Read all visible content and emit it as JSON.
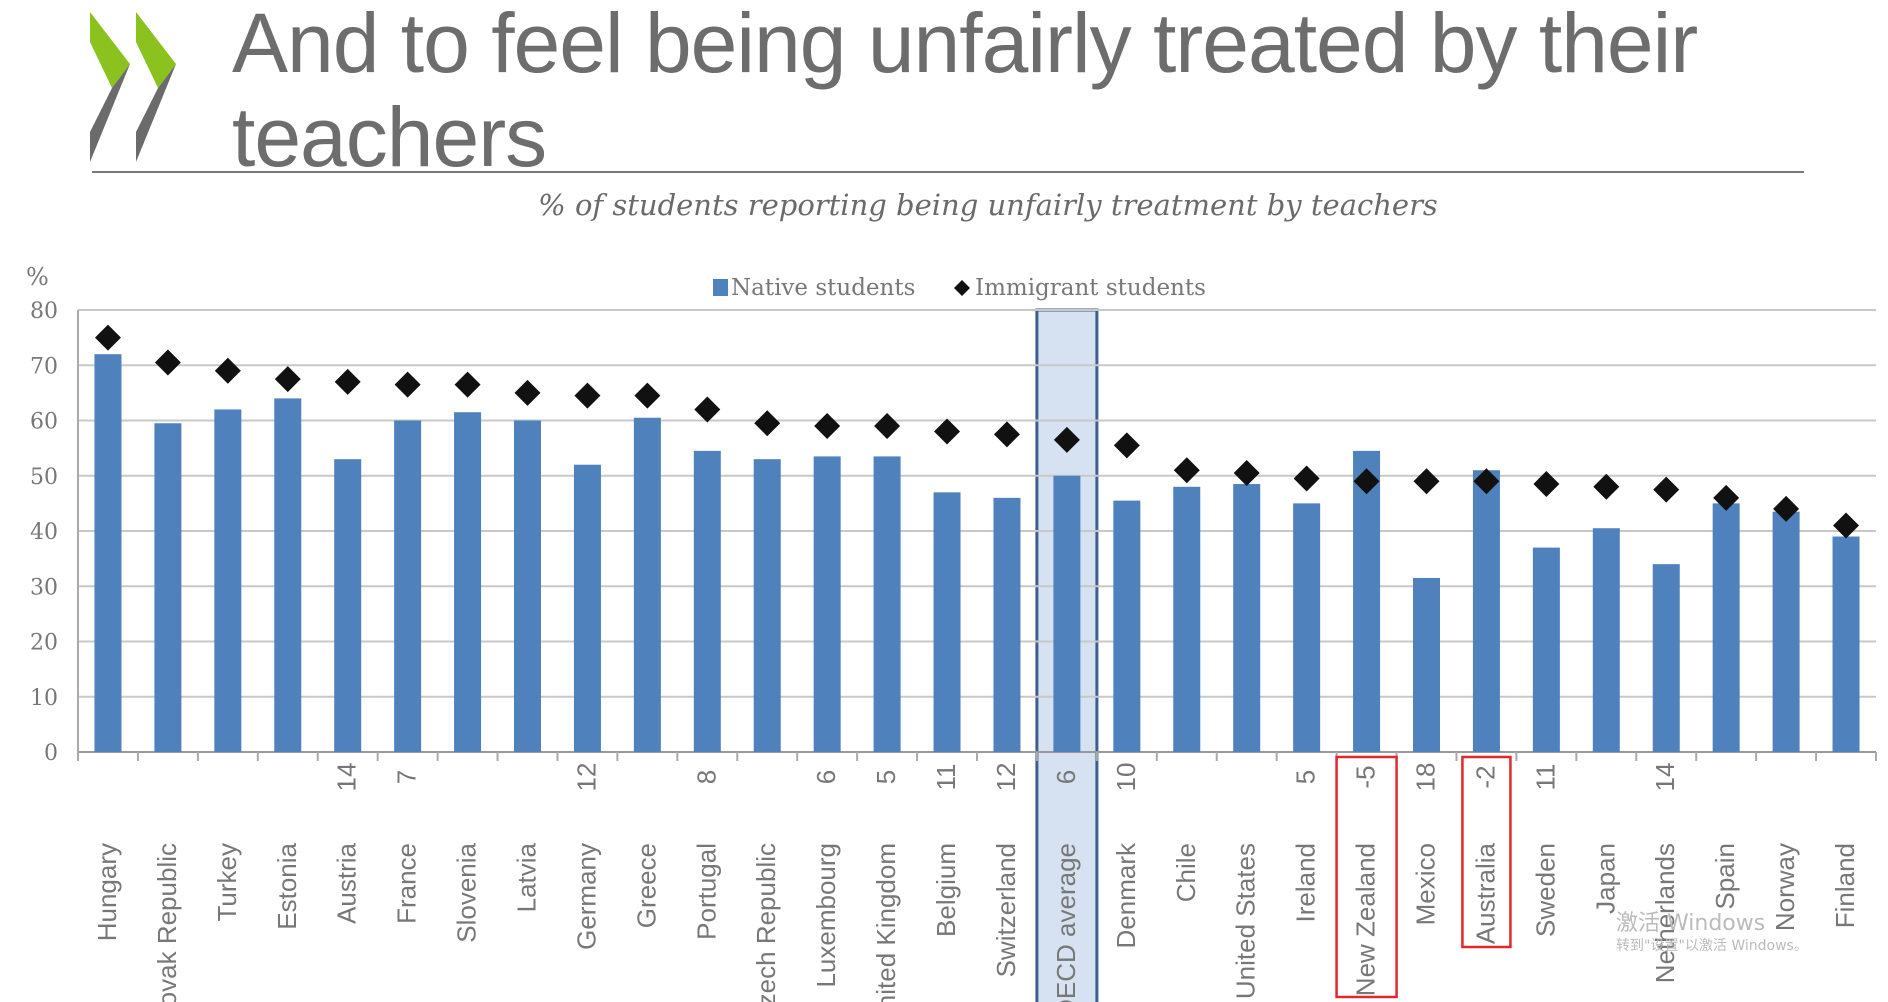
{
  "slide": {
    "title": "And to feel being unfairly treated by their teachers",
    "logo_colors": {
      "green": "#8cc21e",
      "gray": "#6b6b6b"
    }
  },
  "watermark": {
    "line1": "激活 Windows",
    "line2": "转到\"设置\"以激活 Windows。"
  },
  "chart_data": {
    "type": "bar",
    "title": "% of students reporting being unfairly treatment by teachers",
    "ylabel": "%",
    "ylim": [
      0,
      80
    ],
    "yticks": [
      0,
      10,
      20,
      30,
      40,
      50,
      60,
      70,
      80
    ],
    "grid": true,
    "legend_placement": "top-center",
    "colors": {
      "bar": "#4f81bd",
      "marker": "#111111",
      "highlight_fill": "#d6e2f1",
      "highlight_border": "#3d5f8f",
      "annotation_box": "#e0282e"
    },
    "categories": [
      "Hungary",
      "Slovak Republic",
      "Turkey",
      "Estonia",
      "Austria",
      "France",
      "Slovenia",
      "Latvia",
      "Germany",
      "Greece",
      "Portugal",
      "Czech Republic",
      "Luxembourg",
      "United Kingdom",
      "Belgium",
      "Switzerland",
      "OECD average",
      "Denmark",
      "Chile",
      "United States",
      "Ireland",
      "New Zealand",
      "Mexico",
      "Australia",
      "Sweden",
      "Japan",
      "Netherlands",
      "Spain",
      "Norway",
      "Finland"
    ],
    "category_difference_labels": [
      "",
      "",
      "",
      "",
      "14",
      "7",
      "",
      "",
      "12",
      "",
      "8",
      "",
      "6",
      "5",
      "11",
      "12",
      "6",
      "10",
      "",
      "",
      "5",
      "-5",
      "18",
      "-2",
      "11",
      "",
      "14",
      "",
      "",
      ""
    ],
    "series": [
      {
        "name": "Native students",
        "kind": "bar",
        "values": [
          72,
          59.5,
          62,
          64,
          53,
          60,
          61.5,
          60,
          52,
          60.5,
          54.5,
          53,
          53.5,
          53.5,
          47,
          46,
          50,
          45.5,
          48,
          48.5,
          45,
          54.5,
          31.5,
          51,
          37,
          40.5,
          34,
          45,
          43.5,
          39
        ]
      },
      {
        "name": "Immigrant students",
        "kind": "diamond-marker",
        "values": [
          75,
          70.5,
          69,
          67.5,
          67,
          66.5,
          66.5,
          65,
          64.5,
          64.5,
          62,
          59.5,
          59,
          59,
          58,
          57.5,
          56.5,
          55.5,
          51,
          50.5,
          49.5,
          49,
          49,
          49,
          48.5,
          48,
          47.5,
          46,
          44,
          41
        ]
      }
    ],
    "highlighted_category": "OECD average",
    "annotated_categories": [
      "New Zealand",
      "Australia"
    ]
  }
}
